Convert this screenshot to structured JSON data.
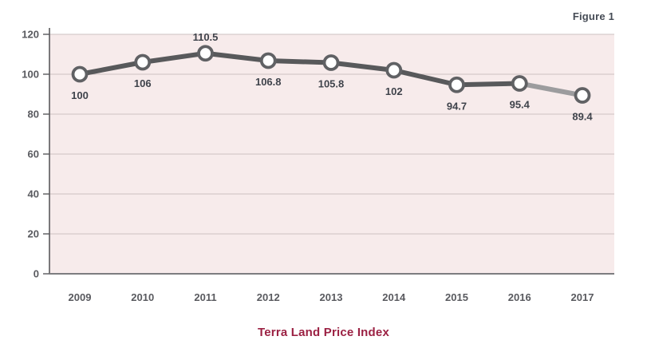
{
  "figure_label": "Figure 1",
  "chart_data": {
    "type": "line",
    "title": "Terra Land Price Index",
    "categories": [
      "2009",
      "2010",
      "2011",
      "2012",
      "2013",
      "2014",
      "2015",
      "2016",
      "2017"
    ],
    "values": [
      100,
      106,
      110.5,
      106.8,
      105.8,
      102,
      94.7,
      95.4,
      89.4
    ],
    "point_labels": [
      "100",
      "106",
      "110.5",
      "106.8",
      "105.8",
      "102",
      "94.7",
      "95.4",
      "89.4"
    ],
    "point_label_positions": [
      "below",
      "below",
      "above",
      "below",
      "below",
      "below",
      "below",
      "below",
      "below"
    ],
    "xlabel": "",
    "ylabel": "",
    "ylim": [
      0,
      120
    ],
    "yticks": [
      0,
      20,
      40,
      60,
      80,
      100,
      120
    ],
    "grid": true,
    "legend": "none",
    "colors": {
      "plot_background": "#f7ebeb",
      "gridline": "#cdc1c1",
      "axis_line": "#59595c",
      "bottom_axis_line": "#7d7d80",
      "line": "#58595b",
      "line_last_segment": "#9c9c9e",
      "marker_fill": "#ffffff",
      "marker_stroke": "#606164",
      "point_label_text": "#3f434b",
      "tick_label_text": "#595a5f",
      "title_text": "#9b2143",
      "figure_label_text": "#454b55"
    }
  }
}
